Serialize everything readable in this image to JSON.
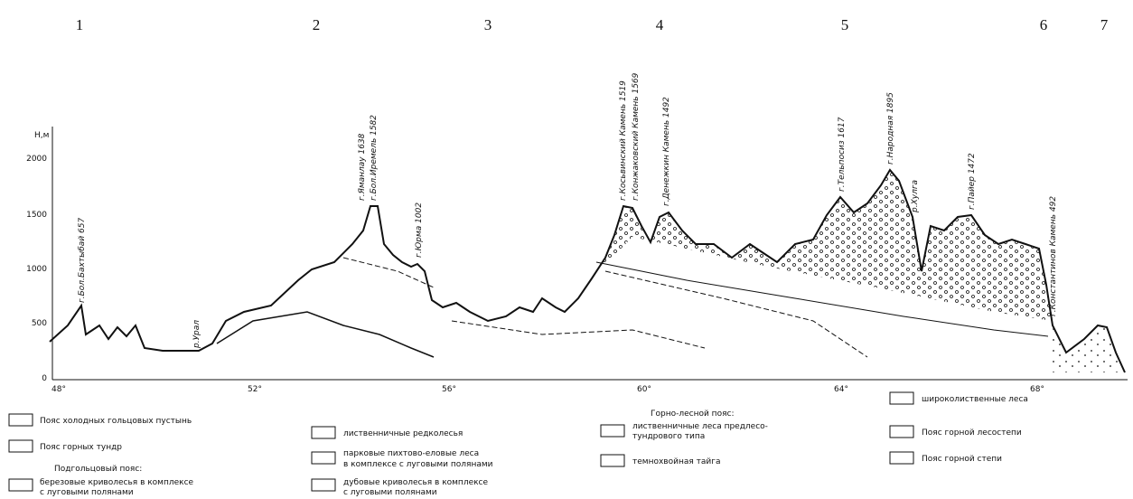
{
  "sections": [
    "1",
    "2",
    "3",
    "4",
    "5",
    "6",
    "7"
  ],
  "axis": {
    "y_label": "Н,м",
    "y_ticks": [
      "2000",
      "1500",
      "1000",
      "500",
      "0"
    ],
    "x_ticks": [
      "48°",
      "52°",
      "56°",
      "60°",
      "64°",
      "68°"
    ]
  },
  "peaks": [
    "г.Бол.Бахтыбай 657",
    "р.Урал",
    "г.Яманлау 1638",
    "г.Бол.Иремель 1582",
    "г.Юрма 1002",
    "г.Косьвинский Камень 1519",
    "г.Конжаковский Камень 1569",
    "г.Денежкин Камень 1492",
    "г.Тельпосиз 1617",
    "г.Народная 1895",
    "р.Хулга",
    "г.Пайер 1472",
    "г.Константинов Камень 492"
  ],
  "legend": {
    "col1": [
      "Пояс холодных гольцовых пустынь",
      "Пояс горных тундр",
      "Подгольцовый пояс:",
      "березовые криволесья в комплексе",
      "с луговыми полянами"
    ],
    "col2": [
      "лиственничные редколесья",
      "парковые пихтово-еловые леса",
      "в комплексе с луговыми полянами",
      "дубовые криволесья в комплексе",
      "с луговыми полянами"
    ],
    "col3": [
      "Горно-лесной пояс:",
      "лиственничные леса предлесо-",
      "тундрового типа",
      "темнохвойная тайга"
    ],
    "col4": [
      "широколиственные леса",
      "Пояс горной лесостепи",
      "Пояс горной степи"
    ]
  }
}
